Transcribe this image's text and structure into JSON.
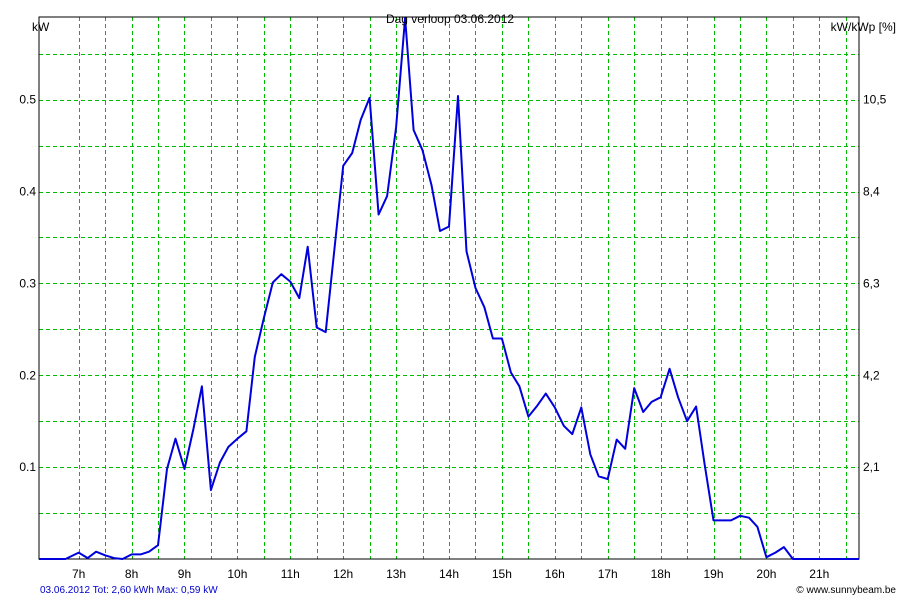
{
  "chart_data": {
    "type": "line",
    "title": "Dag  verloop 03.06.2012",
    "ylabel_left": "kW",
    "ylabel_right": "kW/kWp [%]",
    "x_ticks": [
      "7h",
      "8h",
      "9h",
      "10h",
      "11h",
      "12h",
      "13h",
      "14h",
      "15h",
      "16h",
      "17h",
      "18h",
      "19h",
      "20h",
      "21h"
    ],
    "y_left_ticks": [
      "0.1",
      "0.2",
      "0.3",
      "0.4",
      "0.5"
    ],
    "y_right_ticks": [
      "2,1",
      "4,2",
      "6,3",
      "8,4",
      "10,5"
    ],
    "xlim": [
      6.25,
      21.75
    ],
    "ylim": [
      0,
      0.59
    ],
    "grid": true,
    "line_color": "#0000dd",
    "grid_color": "#00bb00",
    "series": [
      {
        "x": [
          6.25,
          6.75,
          7.0,
          7.17,
          7.33,
          7.5,
          7.67,
          7.83,
          8.0,
          8.17,
          8.33,
          8.5,
          8.67,
          8.83,
          9.0,
          9.17,
          9.33,
          9.5,
          9.67,
          9.83,
          10.0,
          10.17,
          10.33,
          10.5,
          10.67,
          10.83,
          11.0,
          11.17,
          11.33,
          11.5,
          11.67,
          11.83,
          12.0,
          12.17,
          12.33,
          12.5,
          12.67,
          12.83,
          13.0,
          13.17,
          13.33,
          13.5,
          13.67,
          13.83,
          14.0,
          14.17,
          14.33,
          14.5,
          14.67,
          14.83,
          15.0,
          15.17,
          15.33,
          15.5,
          15.67,
          15.83,
          16.0,
          16.17,
          16.33,
          16.5,
          16.67,
          16.83,
          17.0,
          17.17,
          17.33,
          17.5,
          17.67,
          17.83,
          18.0,
          18.17,
          18.33,
          18.5,
          18.67,
          18.83,
          19.0,
          19.17,
          19.33,
          19.5,
          19.67,
          19.83,
          20.0,
          20.17,
          20.33,
          20.5,
          20.67,
          21.0,
          21.75
        ],
        "y": [
          0,
          0,
          0.007,
          0.001,
          0.008,
          0.004,
          0.001,
          0.0,
          0.005,
          0.005,
          0.008,
          0.015,
          0.098,
          0.131,
          0.098,
          0.142,
          0.188,
          0.075,
          0.105,
          0.122,
          0.131,
          0.139,
          0.22,
          0.262,
          0.301,
          0.31,
          0.302,
          0.284,
          0.34,
          0.252,
          0.247,
          0.335,
          0.428,
          0.442,
          0.478,
          0.502,
          0.375,
          0.395,
          0.47,
          0.589,
          0.467,
          0.445,
          0.407,
          0.357,
          0.362,
          0.504,
          0.335,
          0.295,
          0.274,
          0.24,
          0.24,
          0.203,
          0.188,
          0.155,
          0.167,
          0.18,
          0.165,
          0.145,
          0.136,
          0.165,
          0.114,
          0.09,
          0.087,
          0.13,
          0.12,
          0.186,
          0.16,
          0.171,
          0.176,
          0.207,
          0.176,
          0.15,
          0.166,
          0.104,
          0.042,
          0.042,
          0.042,
          0.047,
          0.045,
          0.035,
          0.002,
          0.007,
          0.013,
          0.0,
          0.0,
          0,
          0
        ]
      }
    ]
  },
  "footer": {
    "left": "03.06.2012 Tot: 2,60 kWh Max: 0,59 kW",
    "right": "© www.sunnybeam.be"
  }
}
